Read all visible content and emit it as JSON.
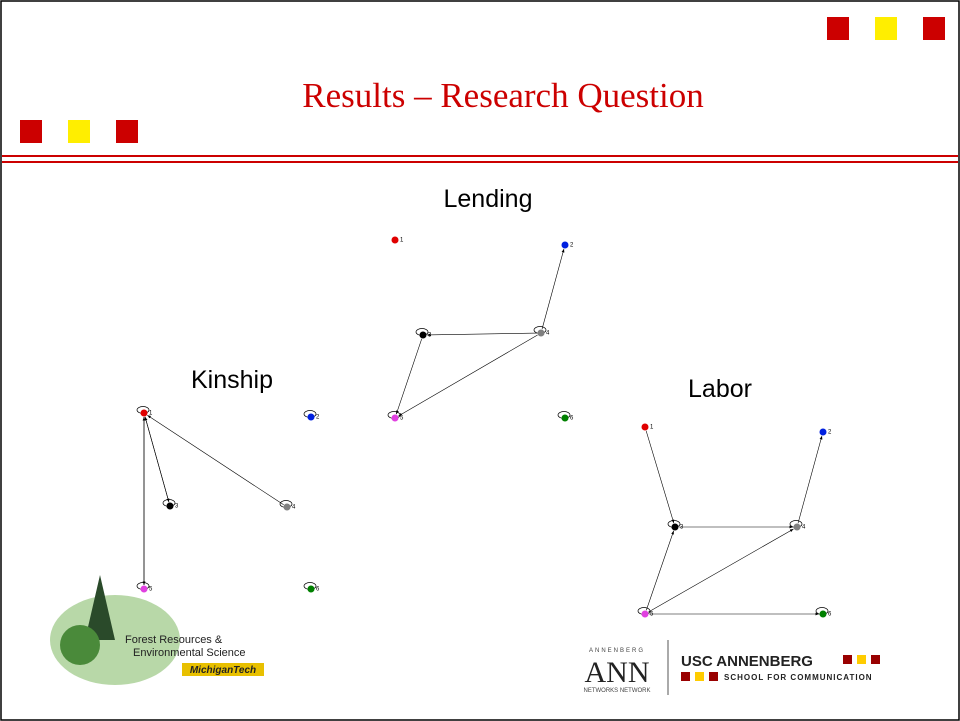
{
  "header": {
    "title": "Results – Research Question"
  },
  "networks": [
    {
      "title": "Lending",
      "nodes": [
        {
          "label": "1",
          "color": "#e00000"
        },
        {
          "label": "2",
          "color": "#0020e0"
        },
        {
          "label": "3",
          "color": "#000000"
        },
        {
          "label": "4",
          "color": "#808080"
        },
        {
          "label": "5",
          "color": "#e040e0"
        },
        {
          "label": "6",
          "color": "#008000"
        }
      ],
      "edges": [
        [
          4,
          2
        ],
        [
          4,
          3
        ],
        [
          3,
          5
        ],
        [
          4,
          5
        ],
        [
          3,
          3
        ],
        [
          4,
          4
        ],
        [
          5,
          5
        ],
        [
          6,
          6
        ]
      ]
    },
    {
      "title": "Kinship",
      "nodes": [
        {
          "label": "1",
          "color": "#e00000"
        },
        {
          "label": "2",
          "color": "#0020e0"
        },
        {
          "label": "3",
          "color": "#000000"
        },
        {
          "label": "4",
          "color": "#808080"
        },
        {
          "label": "5",
          "color": "#e040e0"
        },
        {
          "label": "6",
          "color": "#008000"
        }
      ],
      "edges": [
        [
          3,
          1
        ],
        [
          1,
          3
        ],
        [
          4,
          1
        ],
        [
          5,
          1
        ],
        [
          1,
          5
        ],
        [
          1,
          1
        ],
        [
          2,
          2
        ],
        [
          3,
          3
        ],
        [
          4,
          4
        ],
        [
          5,
          5
        ],
        [
          6,
          6
        ]
      ]
    },
    {
      "title": "Labor",
      "nodes": [
        {
          "label": "1",
          "color": "#e00000"
        },
        {
          "label": "2",
          "color": "#0020e0"
        },
        {
          "label": "3",
          "color": "#000000"
        },
        {
          "label": "4",
          "color": "#808080"
        },
        {
          "label": "5",
          "color": "#e040e0"
        },
        {
          "label": "6",
          "color": "#008000"
        }
      ],
      "edges": [
        [
          1,
          3
        ],
        [
          4,
          2
        ],
        [
          3,
          4
        ],
        [
          5,
          3
        ],
        [
          5,
          4
        ],
        [
          5,
          6
        ],
        [
          3,
          3
        ],
        [
          4,
          4
        ],
        [
          5,
          5
        ],
        [
          6,
          6
        ]
      ]
    }
  ],
  "logos": {
    "forest": [
      "Forest Resources &",
      "Environmental Science",
      "MichiganTech"
    ],
    "ann": {
      "top": "ANNENBERG",
      "mark": "ANN",
      "bottom": "NETWORKS NETWORK"
    },
    "usc": {
      "name": "USC ANNENBERG",
      "sub": "SCHOOL FOR COMMUNICATION"
    }
  }
}
